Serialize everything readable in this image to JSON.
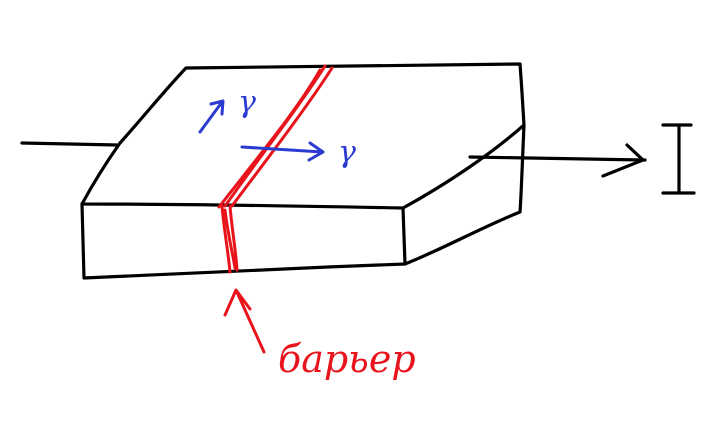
{
  "labels": {
    "gamma_up": "γ",
    "gamma_right": "γ",
    "barrier": "барьер"
  },
  "colors": {
    "ink": "#000000",
    "barrier": "#e8141c",
    "vector": "#2b3bd0",
    "background": "#ffffff"
  }
}
